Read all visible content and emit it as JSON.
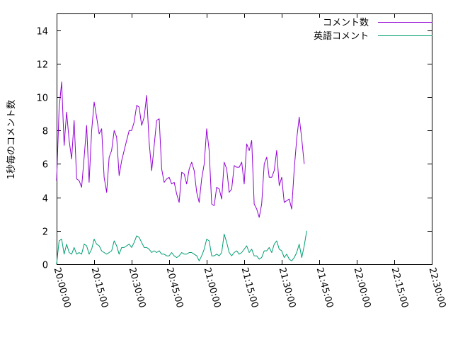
{
  "chart_data": {
    "type": "line",
    "title": "",
    "xlabel": "",
    "ylabel": "1秒毎のコメント数",
    "xlim": [
      "20:00:00",
      "22:30:00"
    ],
    "ylim": [
      0,
      15
    ],
    "grid": false,
    "legend_position": "top-right",
    "x_ticks": [
      "20:00:00",
      "20:15:00",
      "20:30:00",
      "20:45:00",
      "21:00:00",
      "21:15:00",
      "21:30:00",
      "21:45:00",
      "22:00:00",
      "22:15:00",
      "22:30:00"
    ],
    "y_ticks": [
      "0",
      "2",
      "4",
      "6",
      "8",
      "10",
      "12",
      "14"
    ],
    "series": [
      {
        "name": "コメント数",
        "color": "#9400d3",
        "points": [
          [
            "20:00:00",
            5.0
          ],
          [
            "20:01:00",
            9.3
          ],
          [
            "20:02:00",
            10.9
          ],
          [
            "20:03:00",
            7.1
          ],
          [
            "20:04:00",
            9.1
          ],
          [
            "20:05:00",
            7.4
          ],
          [
            "20:06:00",
            6.3
          ],
          [
            "20:07:00",
            8.6
          ],
          [
            "20:08:00",
            5.1
          ],
          [
            "20:09:00",
            5.0
          ],
          [
            "20:10:00",
            4.6
          ],
          [
            "20:11:00",
            6.4
          ],
          [
            "20:12:00",
            8.3
          ],
          [
            "20:13:00",
            4.9
          ],
          [
            "20:14:00",
            8.0
          ],
          [
            "20:15:00",
            9.7
          ],
          [
            "20:16:00",
            8.8
          ],
          [
            "20:17:00",
            7.8
          ],
          [
            "20:18:00",
            8.1
          ],
          [
            "20:19:00",
            5.2
          ],
          [
            "20:20:00",
            4.3
          ],
          [
            "20:21:00",
            6.4
          ],
          [
            "20:22:00",
            6.8
          ],
          [
            "20:23:00",
            8.0
          ],
          [
            "20:24:00",
            7.6
          ],
          [
            "20:25:00",
            5.3
          ],
          [
            "20:26:00",
            6.2
          ],
          [
            "20:27:00",
            6.8
          ],
          [
            "20:28:00",
            7.4
          ],
          [
            "20:29:00",
            8.0
          ],
          [
            "20:30:00",
            8.0
          ],
          [
            "20:31:00",
            8.5
          ],
          [
            "20:32:00",
            9.5
          ],
          [
            "20:33:00",
            9.4
          ],
          [
            "20:34:00",
            8.3
          ],
          [
            "20:35:00",
            8.8
          ],
          [
            "20:36:00",
            10.1
          ],
          [
            "20:37:00",
            7.3
          ],
          [
            "20:38:00",
            5.6
          ],
          [
            "20:39:00",
            7.1
          ],
          [
            "20:40:00",
            8.6
          ],
          [
            "20:41:00",
            8.7
          ],
          [
            "20:42:00",
            5.7
          ],
          [
            "20:43:00",
            4.9
          ],
          [
            "20:44:00",
            5.1
          ],
          [
            "20:45:00",
            5.2
          ],
          [
            "20:46:00",
            4.8
          ],
          [
            "20:47:00",
            4.9
          ],
          [
            "20:48:00",
            4.2
          ],
          [
            "20:49:00",
            3.7
          ],
          [
            "20:50:00",
            5.5
          ],
          [
            "20:51:00",
            5.4
          ],
          [
            "20:52:00",
            4.8
          ],
          [
            "20:53:00",
            5.7
          ],
          [
            "20:54:00",
            6.1
          ],
          [
            "20:55:00",
            5.6
          ],
          [
            "20:56:00",
            4.3
          ],
          [
            "20:57:00",
            3.7
          ],
          [
            "20:58:00",
            5.1
          ],
          [
            "20:59:00",
            6.0
          ],
          [
            "21:00:00",
            8.1
          ],
          [
            "21:01:00",
            6.8
          ],
          [
            "21:02:00",
            3.6
          ],
          [
            "21:03:00",
            3.5
          ],
          [
            "21:04:00",
            4.6
          ],
          [
            "21:05:00",
            4.5
          ],
          [
            "21:06:00",
            3.9
          ],
          [
            "21:07:00",
            6.1
          ],
          [
            "21:08:00",
            5.7
          ],
          [
            "21:09:00",
            4.3
          ],
          [
            "21:10:00",
            4.5
          ],
          [
            "21:11:00",
            5.9
          ],
          [
            "21:12:00",
            5.8
          ],
          [
            "21:13:00",
            5.8
          ],
          [
            "21:14:00",
            6.1
          ],
          [
            "21:15:00",
            4.8
          ],
          [
            "21:16:00",
            7.2
          ],
          [
            "21:17:00",
            6.8
          ],
          [
            "21:18:00",
            7.4
          ],
          [
            "21:19:00",
            3.6
          ],
          [
            "21:20:00",
            3.3
          ],
          [
            "21:21:00",
            2.8
          ],
          [
            "21:22:00",
            3.6
          ],
          [
            "21:23:00",
            6.0
          ],
          [
            "21:24:00",
            6.4
          ],
          [
            "21:25:00",
            5.2
          ],
          [
            "21:26:00",
            5.2
          ],
          [
            "21:27:00",
            5.6
          ],
          [
            "21:28:00",
            6.8
          ],
          [
            "21:29:00",
            4.7
          ],
          [
            "21:30:00",
            5.2
          ],
          [
            "21:31:00",
            3.7
          ],
          [
            "21:32:00",
            3.8
          ],
          [
            "21:33:00",
            3.9
          ],
          [
            "21:34:00",
            3.3
          ],
          [
            "21:35:00",
            5.7
          ],
          [
            "21:36:00",
            7.5
          ],
          [
            "21:37:00",
            8.8
          ],
          [
            "21:38:00",
            7.5
          ],
          [
            "21:39:00",
            6.0
          ]
        ]
      },
      {
        "name": "英語コメント",
        "color": "#009e73",
        "points": [
          [
            "20:00:00",
            0.0
          ],
          [
            "20:01:00",
            1.4
          ],
          [
            "20:02:00",
            1.5
          ],
          [
            "20:03:00",
            0.6
          ],
          [
            "20:04:00",
            1.2
          ],
          [
            "20:05:00",
            0.7
          ],
          [
            "20:06:00",
            0.6
          ],
          [
            "20:07:00",
            1.0
          ],
          [
            "20:08:00",
            0.6
          ],
          [
            "20:09:00",
            0.7
          ],
          [
            "20:10:00",
            0.6
          ],
          [
            "20:11:00",
            1.2
          ],
          [
            "20:12:00",
            1.1
          ],
          [
            "20:13:00",
            0.6
          ],
          [
            "20:14:00",
            0.9
          ],
          [
            "20:15:00",
            1.5
          ],
          [
            "20:16:00",
            1.2
          ],
          [
            "20:17:00",
            1.1
          ],
          [
            "20:18:00",
            0.8
          ],
          [
            "20:19:00",
            0.7
          ],
          [
            "20:20:00",
            0.6
          ],
          [
            "20:21:00",
            0.7
          ],
          [
            "20:22:00",
            0.8
          ],
          [
            "20:23:00",
            1.4
          ],
          [
            "20:24:00",
            1.1
          ],
          [
            "20:25:00",
            0.6
          ],
          [
            "20:26:00",
            1.0
          ],
          [
            "20:27:00",
            1.0
          ],
          [
            "20:28:00",
            1.1
          ],
          [
            "20:29:00",
            1.2
          ],
          [
            "20:30:00",
            1.0
          ],
          [
            "20:31:00",
            1.3
          ],
          [
            "20:32:00",
            1.7
          ],
          [
            "20:33:00",
            1.6
          ],
          [
            "20:34:00",
            1.3
          ],
          [
            "20:35:00",
            1.0
          ],
          [
            "20:36:00",
            1.0
          ],
          [
            "20:37:00",
            0.9
          ],
          [
            "20:38:00",
            0.7
          ],
          [
            "20:39:00",
            0.8
          ],
          [
            "20:40:00",
            0.7
          ],
          [
            "20:41:00",
            0.8
          ],
          [
            "20:42:00",
            0.6
          ],
          [
            "20:43:00",
            0.6
          ],
          [
            "20:44:00",
            0.5
          ],
          [
            "20:45:00",
            0.5
          ],
          [
            "20:46:00",
            0.7
          ],
          [
            "20:47:00",
            0.5
          ],
          [
            "20:48:00",
            0.4
          ],
          [
            "20:49:00",
            0.5
          ],
          [
            "20:50:00",
            0.7
          ],
          [
            "20:51:00",
            0.6
          ],
          [
            "20:52:00",
            0.6
          ],
          [
            "20:53:00",
            0.7
          ],
          [
            "20:54:00",
            0.7
          ],
          [
            "20:55:00",
            0.6
          ],
          [
            "20:56:00",
            0.5
          ],
          [
            "20:57:00",
            0.2
          ],
          [
            "20:58:00",
            0.5
          ],
          [
            "20:59:00",
            0.9
          ],
          [
            "21:00:00",
            1.5
          ],
          [
            "21:01:00",
            1.4
          ],
          [
            "21:02:00",
            0.5
          ],
          [
            "21:03:00",
            0.5
          ],
          [
            "21:04:00",
            0.6
          ],
          [
            "21:05:00",
            0.5
          ],
          [
            "21:06:00",
            0.7
          ],
          [
            "21:07:00",
            1.8
          ],
          [
            "21:08:00",
            1.3
          ],
          [
            "21:09:00",
            0.7
          ],
          [
            "21:10:00",
            0.5
          ],
          [
            "21:11:00",
            0.7
          ],
          [
            "21:12:00",
            0.8
          ],
          [
            "21:13:00",
            0.6
          ],
          [
            "21:14:00",
            0.7
          ],
          [
            "21:15:00",
            0.9
          ],
          [
            "21:16:00",
            1.1
          ],
          [
            "21:17:00",
            0.7
          ],
          [
            "21:18:00",
            0.9
          ],
          [
            "21:19:00",
            0.5
          ],
          [
            "21:20:00",
            0.5
          ],
          [
            "21:21:00",
            0.3
          ],
          [
            "21:22:00",
            0.4
          ],
          [
            "21:23:00",
            0.8
          ],
          [
            "21:24:00",
            0.8
          ],
          [
            "21:25:00",
            1.0
          ],
          [
            "21:26:00",
            0.7
          ],
          [
            "21:27:00",
            1.2
          ],
          [
            "21:28:00",
            1.4
          ],
          [
            "21:29:00",
            0.9
          ],
          [
            "21:30:00",
            0.8
          ],
          [
            "21:31:00",
            0.4
          ],
          [
            "21:32:00",
            0.6
          ],
          [
            "21:33:00",
            0.3
          ],
          [
            "21:34:00",
            0.2
          ],
          [
            "21:35:00",
            0.4
          ],
          [
            "21:36:00",
            0.7
          ],
          [
            "21:37:00",
            1.2
          ],
          [
            "21:38:00",
            0.4
          ],
          [
            "21:39:00",
            1.1
          ],
          [
            "21:40:00",
            2.0
          ]
        ]
      }
    ]
  }
}
